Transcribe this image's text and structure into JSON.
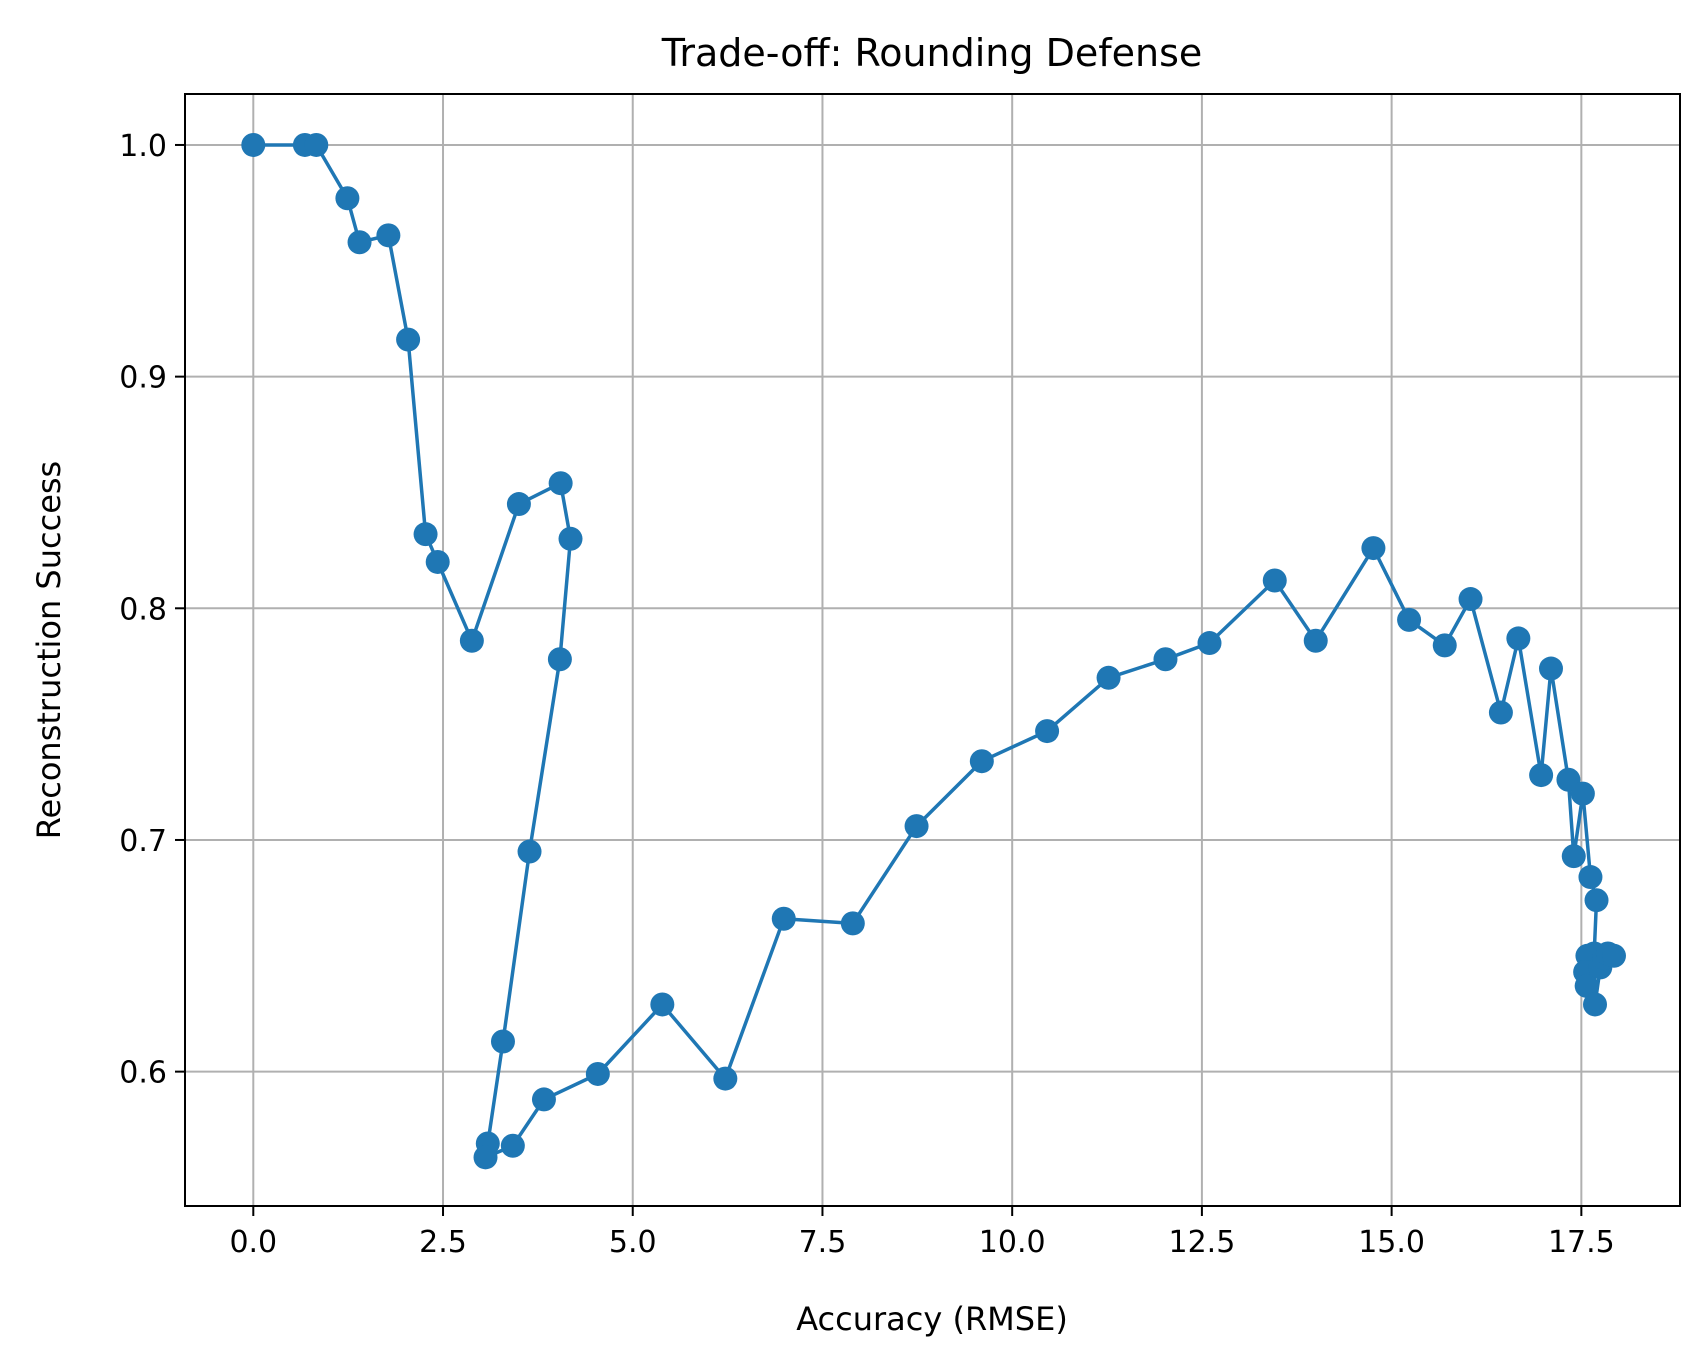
{
  "chart_data": {
    "type": "line",
    "title": "Trade-off: Rounding Defense",
    "xlabel": "Accuracy (RMSE)",
    "ylabel": "Reconstruction Success",
    "xlim": [
      -0.9,
      18.8
    ],
    "ylim": [
      0.542,
      1.022
    ],
    "xticks": [
      0.0,
      2.5,
      5.0,
      7.5,
      10.0,
      12.5,
      15.0,
      17.5
    ],
    "xtick_labels": [
      "0.0",
      "2.5",
      "5.0",
      "7.5",
      "10.0",
      "12.5",
      "15.0",
      "17.5"
    ],
    "yticks": [
      0.6,
      0.7,
      0.8,
      0.9,
      1.0
    ],
    "ytick_labels": [
      "0.6",
      "0.7",
      "0.8",
      "0.9",
      "1.0"
    ],
    "grid": true,
    "colors": {
      "series": "#1f77b4",
      "grid": "#b0b0b0",
      "axes": "#000000"
    },
    "series": [
      {
        "points": [
          [
            0.0,
            1.0
          ],
          [
            0.68,
            1.0
          ],
          [
            0.83,
            1.0
          ],
          [
            1.24,
            0.977
          ],
          [
            1.4,
            0.958
          ],
          [
            1.78,
            0.961
          ],
          [
            2.04,
            0.916
          ],
          [
            2.27,
            0.832
          ],
          [
            2.43,
            0.82
          ],
          [
            2.88,
            0.786
          ],
          [
            3.5,
            0.845
          ],
          [
            4.05,
            0.854
          ],
          [
            4.18,
            0.83
          ],
          [
            4.04,
            0.778
          ],
          [
            3.64,
            0.695
          ],
          [
            3.29,
            0.613
          ],
          [
            3.09,
            0.569
          ],
          [
            3.06,
            0.563
          ],
          [
            3.42,
            0.568
          ],
          [
            3.83,
            0.588
          ],
          [
            4.54,
            0.599
          ],
          [
            5.39,
            0.629
          ],
          [
            6.22,
            0.597
          ],
          [
            6.99,
            0.666
          ],
          [
            7.9,
            0.664
          ],
          [
            8.74,
            0.706
          ],
          [
            9.6,
            0.734
          ],
          [
            10.46,
            0.747
          ],
          [
            11.27,
            0.77
          ],
          [
            12.02,
            0.778
          ],
          [
            12.6,
            0.785
          ],
          [
            13.46,
            0.812
          ],
          [
            14.0,
            0.786
          ],
          [
            14.76,
            0.826
          ],
          [
            15.23,
            0.795
          ],
          [
            15.7,
            0.784
          ],
          [
            16.04,
            0.804
          ],
          [
            16.44,
            0.755
          ],
          [
            16.67,
            0.787
          ],
          [
            16.97,
            0.728
          ],
          [
            17.1,
            0.774
          ],
          [
            17.33,
            0.726
          ],
          [
            17.4,
            0.693
          ],
          [
            17.52,
            0.72
          ],
          [
            17.62,
            0.684
          ],
          [
            17.7,
            0.674
          ],
          [
            17.67,
            0.651
          ],
          [
            17.58,
            0.65
          ],
          [
            17.55,
            0.643
          ],
          [
            17.57,
            0.637
          ],
          [
            17.68,
            0.629
          ],
          [
            17.75,
            0.645
          ],
          [
            17.8,
            0.649
          ],
          [
            17.85,
            0.651
          ],
          [
            17.93,
            0.65
          ]
        ]
      }
    ]
  }
}
